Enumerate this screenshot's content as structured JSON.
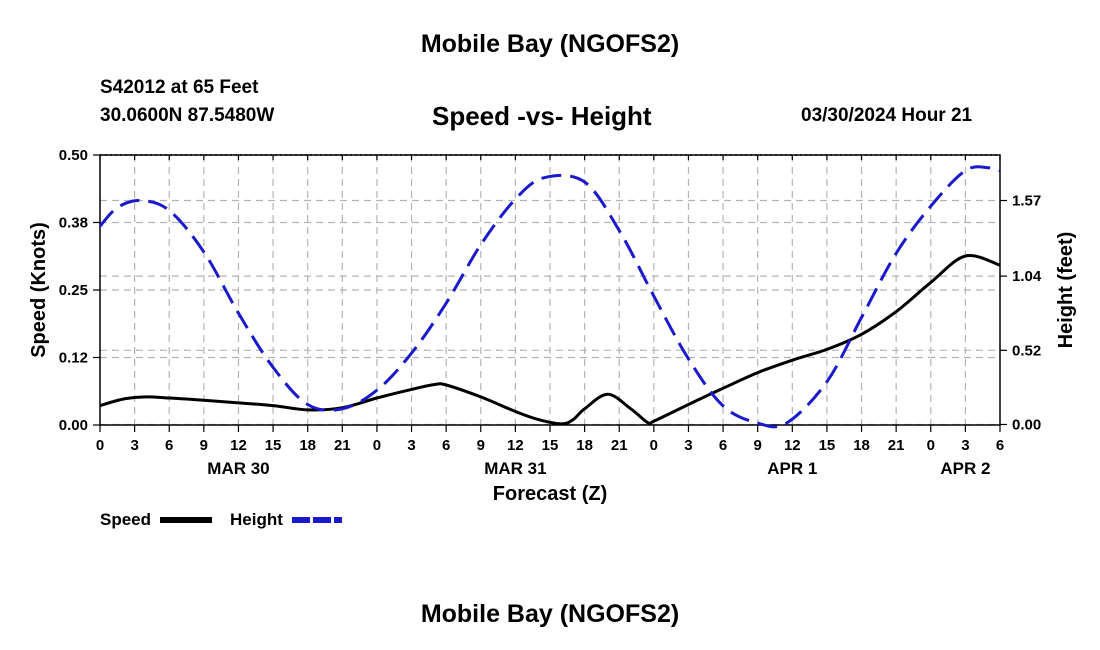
{
  "header": {
    "title": "Mobile Bay (NGOFS2)",
    "station": "S42012 at 65 Feet",
    "coordinates": "30.0600N  87.5480W",
    "subtitle": "Speed -vs- Height",
    "datetime": "03/30/2024 Hour 21"
  },
  "footer": {
    "title": "Mobile Bay (NGOFS2)"
  },
  "colors": {
    "speed": "#000000",
    "height": "#1a1acc",
    "grid": "#b4b4b4"
  },
  "chart_data": {
    "type": "line",
    "xlabel": "Forecast (Z)",
    "ylabel": "Speed (Knots)",
    "y2label": "Height (feet)",
    "x_unit": "hours from MAR 30 00Z",
    "xlim": [
      0,
      78
    ],
    "ylim": [
      0,
      0.5
    ],
    "y2lim": [
      -0.0036,
      1.8891
    ],
    "x_tick_labels": [
      "0",
      "3",
      "6",
      "9",
      "12",
      "15",
      "18",
      "21",
      "0",
      "3",
      "6",
      "9",
      "12",
      "15",
      "18",
      "21",
      "0",
      "3",
      "6",
      "9",
      "12",
      "15",
      "18",
      "21",
      "0",
      "3",
      "6"
    ],
    "y_ticks": [
      0,
      0.125,
      0.25,
      0.375,
      0.5
    ],
    "y_tick_labels": [
      "0.00",
      "0.12",
      "0.25",
      "0.38",
      "0.50"
    ],
    "y2_ticks": [
      0,
      0.52,
      1.04,
      1.57
    ],
    "y2_tick_labels": [
      "0.00",
      "0.52",
      "1.04",
      "1.57"
    ],
    "day_labels": [
      {
        "label": "MAR 30",
        "hour": 12
      },
      {
        "label": "MAR 31",
        "hour": 36
      },
      {
        "label": "APR 1",
        "hour": 60
      },
      {
        "label": "APR 2",
        "hour": 75
      }
    ],
    "legend": [
      {
        "name": "Speed",
        "style": "solid"
      },
      {
        "name": "Height",
        "style": "dashed"
      }
    ],
    "series": [
      {
        "name": "Speed",
        "axis": "left",
        "style": "solid",
        "x": [
          0,
          2,
          4,
          6,
          9,
          12,
          15,
          18,
          21,
          24,
          27,
          29,
          30,
          33,
          36,
          38,
          40,
          41,
          42,
          44,
          46,
          47.5,
          48,
          51,
          54,
          57,
          60,
          63,
          66,
          69,
          72,
          75,
          78
        ],
        "y": [
          0.036,
          0.048,
          0.052,
          0.05,
          0.046,
          0.041,
          0.036,
          0.028,
          0.032,
          0.05,
          0.066,
          0.075,
          0.074,
          0.052,
          0.025,
          0.01,
          0.002,
          0.01,
          0.03,
          0.057,
          0.03,
          0.004,
          0.007,
          0.038,
          0.068,
          0.097,
          0.12,
          0.14,
          0.168,
          0.21,
          0.264,
          0.313,
          0.296
        ]
      },
      {
        "name": "Height",
        "axis": "right",
        "style": "dashed",
        "x": [
          0,
          1.5,
          3.5,
          6,
          9,
          12,
          15,
          18,
          21,
          24,
          27,
          30,
          33,
          36,
          38.5,
          42,
          45,
          48,
          51,
          54,
          57,
          59.5,
          63,
          66,
          69,
          72,
          75,
          77,
          78
        ],
        "y": [
          1.39,
          1.52,
          1.57,
          1.5,
          1.21,
          0.78,
          0.4,
          0.14,
          0.11,
          0.24,
          0.5,
          0.85,
          1.26,
          1.58,
          1.73,
          1.7,
          1.36,
          0.9,
          0.46,
          0.13,
          0.01,
          0.01,
          0.3,
          0.75,
          1.2,
          1.53,
          1.78,
          1.8,
          1.78
        ]
      }
    ]
  }
}
